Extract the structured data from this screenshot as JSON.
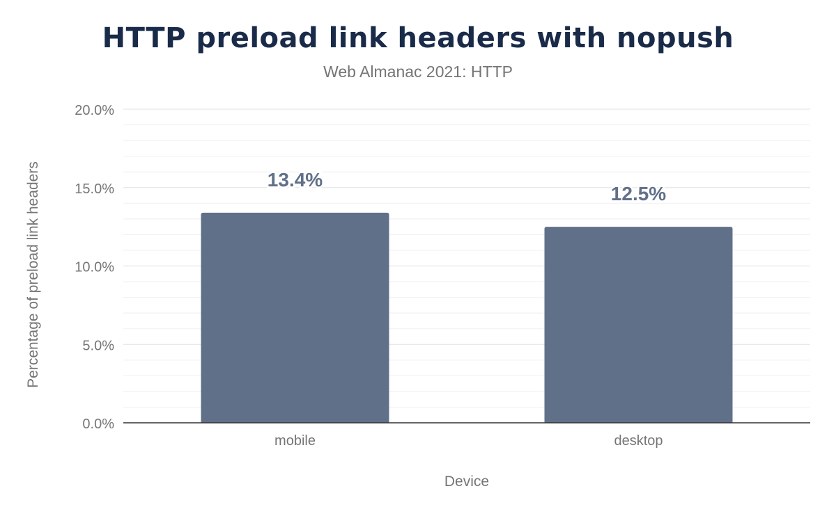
{
  "chart_data": {
    "type": "bar",
    "title": "HTTP preload link headers with nopush",
    "subtitle": "Web Almanac 2021: HTTP",
    "xlabel": "Device",
    "ylabel": "Percentage of preload link headers",
    "categories": [
      "mobile",
      "desktop"
    ],
    "values": [
      13.4,
      12.5
    ],
    "data_labels": [
      "13.4%",
      "12.5%"
    ],
    "ylim": [
      0,
      20
    ],
    "yticks": [
      0,
      5,
      10,
      15,
      20
    ],
    "ytick_labels": [
      "0.0%",
      "5.0%",
      "10.0%",
      "15.0%",
      "20.0%"
    ],
    "grid": true,
    "bar_color": "#617089"
  }
}
